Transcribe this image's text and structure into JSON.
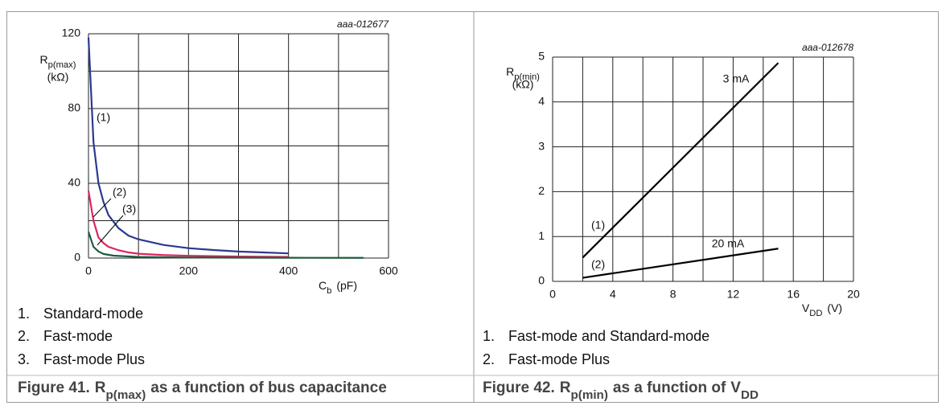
{
  "chart_data": [
    {
      "type": "line",
      "id_label": "aaa-012677",
      "x_label": [
        {
          "text": "C"
        },
        {
          "text": "b",
          "sub": true
        },
        {
          "text": "(pF)"
        }
      ],
      "y_label": [
        {
          "text": "R"
        },
        {
          "text": "p(max)",
          "sub": true
        }
      ],
      "y_unit": "(kΩ)",
      "xlim": [
        0,
        600
      ],
      "xticks": [
        0,
        200,
        400,
        600
      ],
      "minor_xticks": [
        100,
        300,
        500
      ],
      "ylim": [
        0,
        120
      ],
      "yticks": [
        0,
        40,
        80,
        120
      ],
      "minor_yticks": [
        20,
        60,
        100
      ],
      "grid": true,
      "series": [
        {
          "name": "(1)",
          "color": "#2b3990",
          "x": [
            0,
            5,
            10,
            20,
            30,
            40,
            60,
            80,
            100,
            150,
            200,
            250,
            300,
            350,
            400
          ],
          "values": [
            118,
            90,
            62,
            40,
            30,
            23,
            16,
            12,
            10,
            7,
            5.3,
            4.3,
            3.5,
            3,
            2.5
          ]
        },
        {
          "name": "(2)",
          "color": "#e0245e",
          "x": [
            0,
            10,
            20,
            30,
            40,
            60,
            80,
            100,
            150,
            200,
            300,
            400
          ],
          "values": [
            36,
            20,
            11,
            8,
            6,
            4.2,
            3,
            2.3,
            1.6,
            1.2,
            0.8,
            0.6
          ]
        },
        {
          "name": "(3)",
          "color": "#1d5b3e",
          "x": [
            0,
            10,
            20,
            30,
            50,
            100,
            200,
            300,
            400,
            550
          ],
          "values": [
            14,
            6,
            3.5,
            2.2,
            1.3,
            0.6,
            0.3,
            0.2,
            0.15,
            0.1
          ]
        }
      ],
      "key": [
        {
          "number": "1.",
          "text": "Standard-mode"
        },
        {
          "number": "2.",
          "text": "Fast-mode"
        },
        {
          "number": "3.",
          "text": "Fast-mode Plus"
        }
      ],
      "caption": [
        {
          "text": "Figure 41."
        },
        {
          "text": "R"
        },
        {
          "text": "p(max)",
          "sub": true
        },
        {
          "text": "as a function of bus capacitance"
        }
      ]
    },
    {
      "type": "line",
      "id_label": "aaa-012678",
      "x_label": [
        {
          "text": "V"
        },
        {
          "text": "DD",
          "sub": true
        },
        {
          "text": "(V)"
        }
      ],
      "y_label": [
        {
          "text": "R"
        },
        {
          "text": "p(min)",
          "sub": true
        }
      ],
      "y_unit": "(kΩ)",
      "xlim": [
        0,
        20
      ],
      "xticks": [
        0,
        4,
        8,
        12,
        16,
        20
      ],
      "minor_xticks": [
        2,
        6,
        10,
        14,
        18
      ],
      "ylim": [
        0,
        5
      ],
      "yticks": [
        0,
        1,
        2,
        3,
        4,
        5
      ],
      "minor_yticks": [],
      "grid": true,
      "series": [
        {
          "name": "(1)",
          "note": "3 mA",
          "color": "#000000",
          "x": [
            2,
            15
          ],
          "values": [
            0.53,
            4.87
          ]
        },
        {
          "name": "(2)",
          "note": "20 mA",
          "color": "#000000",
          "x": [
            2,
            15
          ],
          "values": [
            0.08,
            0.73
          ]
        }
      ],
      "key": [
        {
          "number": "1.",
          "text": "Fast-mode and Standard-mode"
        },
        {
          "number": "2.",
          "text": "Fast-mode Plus"
        }
      ],
      "caption": [
        {
          "text": "Figure 42."
        },
        {
          "text": "R"
        },
        {
          "text": "p(min)",
          "sub": true
        },
        {
          "text": "as a function of"
        },
        {
          "text": "V"
        },
        {
          "text": "DD",
          "sub": true
        }
      ]
    }
  ]
}
